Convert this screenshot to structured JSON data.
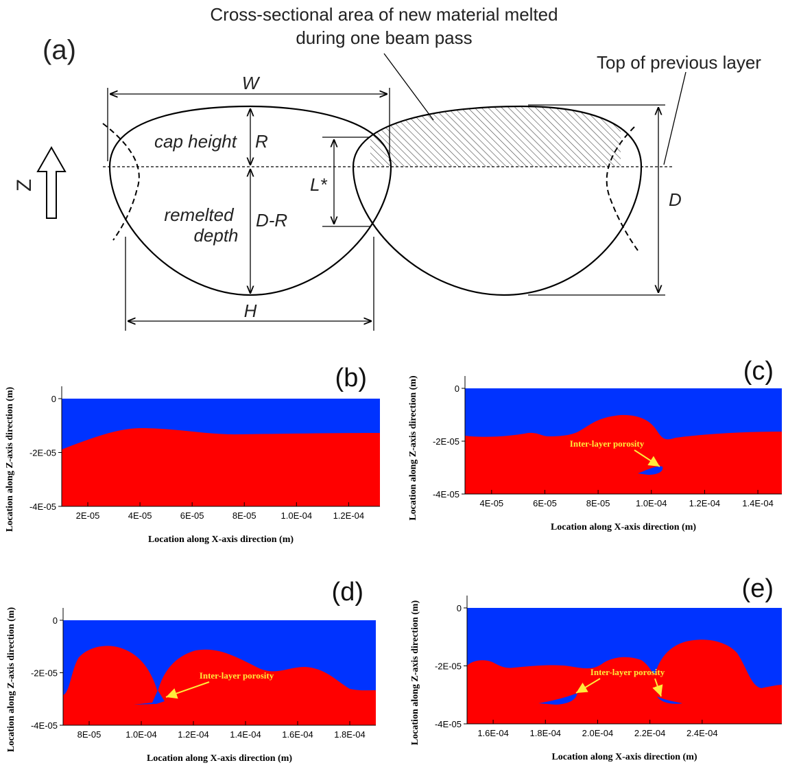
{
  "panel_a": {
    "label": "(a)",
    "caption_line1": "Cross-sectional area of new material melted",
    "caption_line2": "during one beam pass",
    "top_label": "Top of previous layer",
    "W": "W",
    "cap_height": "cap height",
    "R": "R",
    "remelted": "remelted",
    "depth": "depth",
    "D_R": "D-R",
    "L_star": "L*",
    "D": "D",
    "H": "H",
    "Z": "Z"
  },
  "panels": [
    {
      "label": "(b)",
      "x_label": "Location along X-axis  direction (m)",
      "y_label": "Location along Z-axis  direction (m)",
      "xlim": [
        1e-05,
        0.000132
      ],
      "ylim": [
        -4e-05,
        0
      ],
      "xticks": [
        {
          "value": 2e-05,
          "label": "2E-05"
        },
        {
          "value": 4e-05,
          "label": "4E-05"
        },
        {
          "value": 6e-05,
          "label": "6E-05"
        },
        {
          "value": 8e-05,
          "label": "8E-05"
        },
        {
          "value": 0.0001,
          "label": "1.0E-04"
        },
        {
          "value": 0.00012,
          "label": "1.2E-04"
        }
      ],
      "yticks": [
        0,
        {
          "value": -2e-05,
          "label": "-2E-05"
        },
        {
          "value": -4e-05,
          "label": "-4E-05"
        }
      ]
    },
    {
      "label": "(c)",
      "x_label": "Location along X-axis  direction (m)",
      "y_label": "Location along Z-axis  direction (m)",
      "annotation": "Inter-layer porosity",
      "xlim": [
        3e-05,
        0.000149
      ],
      "ylim": [
        -4e-05,
        0
      ],
      "xticks": [
        {
          "value": 4e-05,
          "label": "4E-05"
        },
        {
          "value": 6e-05,
          "label": "6E-05"
        },
        {
          "value": 8e-05,
          "label": "8E-05"
        },
        {
          "value": 0.0001,
          "label": "1.0E-04"
        },
        {
          "value": 0.00012,
          "label": "1.2E-04"
        },
        {
          "value": 0.00014,
          "label": "1.4E-04"
        }
      ],
      "yticks": [
        0,
        {
          "value": -2e-05,
          "label": "-2E-05"
        },
        {
          "value": -4e-05,
          "label": "-4E-05"
        }
      ]
    },
    {
      "label": "(d)",
      "x_label": "Location along X-axis  direction (m)",
      "y_label": "Location along Z-axis  direction (m)",
      "annotation": "Inter-layer porosity",
      "xlim": [
        7e-05,
        0.00019
      ],
      "ylim": [
        -4e-05,
        0
      ],
      "xticks": [
        {
          "value": 8e-05,
          "label": "8E-05"
        },
        {
          "value": 0.0001,
          "label": "1.0E-04"
        },
        {
          "value": 0.00012,
          "label": "1.2E-04"
        },
        {
          "value": 0.00014,
          "label": "1.4E-04"
        },
        {
          "value": 0.00016,
          "label": "1.6E-04"
        },
        {
          "value": 0.00018,
          "label": "1.8E-04"
        }
      ],
      "yticks": [
        0,
        {
          "value": -2e-05,
          "label": "-2E-05"
        },
        {
          "value": -4e-05,
          "label": "-4E-05"
        }
      ]
    },
    {
      "label": "(e)",
      "x_label": "Location along X-axis  direction (m)",
      "y_label": "Location along Z-axis  direction (m)",
      "annotation": "Inter-layer porosity",
      "xlim": [
        0.00015,
        0.0002705
      ],
      "ylim": [
        -4e-05,
        0
      ],
      "xticks": [
        {
          "value": 0.00016,
          "label": "1.6E-04"
        },
        {
          "value": 0.00018,
          "label": "1.8E-04"
        },
        {
          "value": 0.0002,
          "label": "2.0E-04"
        },
        {
          "value": 0.00022,
          "label": "2.2E-04"
        },
        {
          "value": 0.00024,
          "label": "2.4E-04"
        }
      ],
      "yticks": [
        0,
        {
          "value": -2e-05,
          "label": "-2E-05"
        },
        {
          "value": -4e-05,
          "label": "-4E-05"
        }
      ]
    }
  ]
}
